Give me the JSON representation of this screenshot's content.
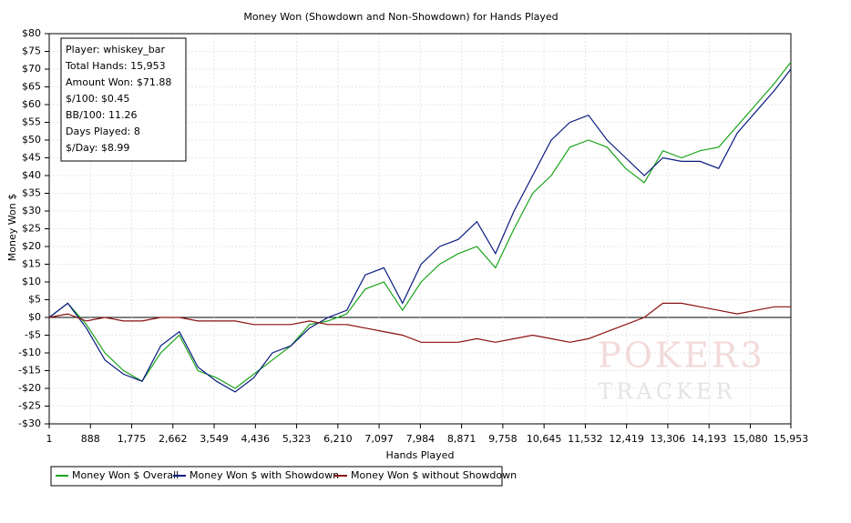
{
  "chart_data": {
    "type": "line",
    "title": "Money Won (Showdown and Non-Showdown) for Hands Played",
    "x_label": "Hands Played",
    "y_label": "Money Won $",
    "info": [
      "Player: whiskey_bar",
      "Total Hands: 15,953",
      "Amount Won: $71.88",
      "$/100: $0.45",
      "BB/100: 11.26",
      "Days Played: 8",
      "$/Day: $8.99"
    ],
    "watermark": [
      "POKER3",
      "TRACKER"
    ],
    "x": [
      1,
      400,
      800,
      1200,
      1600,
      2000,
      2400,
      2800,
      3200,
      3600,
      4000,
      4400,
      4800,
      5200,
      5600,
      6000,
      6400,
      6800,
      7200,
      7600,
      8000,
      8400,
      8800,
      9200,
      9600,
      10000,
      10400,
      10800,
      11200,
      11600,
      12000,
      12400,
      12800,
      13200,
      13600,
      14000,
      14400,
      14800,
      15200,
      15600,
      15953
    ],
    "series": [
      {
        "name": "Money Won $ Overall",
        "color": "#1aa31a",
        "values": [
          0,
          4,
          -2,
          -10,
          -15,
          -18,
          -10,
          -5,
          -15,
          -17,
          -20,
          -16,
          -12,
          -8,
          -2,
          -1,
          1,
          8,
          10,
          2,
          10,
          15,
          18,
          20,
          14,
          25,
          35,
          40,
          48,
          50,
          48,
          42,
          38,
          47,
          45,
          47,
          48,
          54,
          60,
          66,
          72
        ]
      },
      {
        "name": "Money Won $ with Showdown",
        "color": "#0a1a80",
        "values": [
          0,
          4,
          -3,
          -12,
          -16,
          -18,
          -8,
          -4,
          -14,
          -18,
          -21,
          -17,
          -10,
          -8,
          -3,
          0,
          2,
          12,
          14,
          4,
          15,
          20,
          22,
          27,
          18,
          30,
          40,
          50,
          55,
          57,
          50,
          45,
          40,
          45,
          44,
          44,
          42,
          52,
          58,
          64,
          70
        ]
      },
      {
        "name": "Money Won $ without Showdown",
        "color": "#8b1010",
        "values": [
          0,
          1,
          -1,
          0,
          -1,
          -1,
          0,
          0,
          -1,
          -1,
          -1,
          -2,
          -2,
          -2,
          -1,
          -2,
          -2,
          -3,
          -4,
          -5,
          -7,
          -7,
          -7,
          -6,
          -7,
          -6,
          -5,
          -6,
          -7,
          -6,
          -4,
          -2,
          0,
          4,
          4,
          3,
          2,
          1,
          2,
          3,
          3
        ]
      }
    ],
    "xlim": [
      1,
      15953
    ],
    "xticks": [
      1,
      888,
      {
        "value": 1775,
        "label": "1,775"
      },
      {
        "value": 2662,
        "label": "2,662"
      },
      {
        "value": 3549,
        "label": "3,549"
      },
      {
        "value": 4436,
        "label": "4,436"
      },
      {
        "value": 5323,
        "label": "5,323"
      },
      {
        "value": 6210,
        "label": "6,210"
      },
      {
        "value": 7097,
        "label": "7,097"
      },
      {
        "value": 7984,
        "label": "7,984"
      },
      {
        "value": 8871,
        "label": "8,871"
      },
      {
        "value": 9758,
        "label": "9,758"
      },
      {
        "value": 10645,
        "label": "10,645"
      },
      {
        "value": 11532,
        "label": "11,532"
      },
      {
        "value": 12419,
        "label": "12,419"
      },
      {
        "value": 13306,
        "label": "13,306"
      },
      {
        "value": 14193,
        "label": "14,193"
      },
      {
        "value": 15080,
        "label": "15,080"
      },
      {
        "value": 15953,
        "label": "15,953"
      }
    ],
    "ylim": [
      -30,
      80
    ],
    "yticks": [
      {
        "value": -30,
        "label": "-$30"
      },
      {
        "value": -25,
        "label": "-$25"
      },
      {
        "value": -20,
        "label": "-$20"
      },
      {
        "value": -15,
        "label": "-$15"
      },
      {
        "value": -10,
        "label": "-$10"
      },
      {
        "value": -5,
        "label": "-$5"
      },
      {
        "value": 0,
        "label": "$0"
      },
      {
        "value": 5,
        "label": "$5"
      },
      {
        "value": 10,
        "label": "$10"
      },
      {
        "value": 15,
        "label": "$15"
      },
      {
        "value": 20,
        "label": "$20"
      },
      {
        "value": 25,
        "label": "$25"
      },
      {
        "value": 30,
        "label": "$30"
      },
      {
        "value": 35,
        "label": "$35"
      },
      {
        "value": 40,
        "label": "$40"
      },
      {
        "value": 45,
        "label": "$45"
      },
      {
        "value": 50,
        "label": "$50"
      },
      {
        "value": 55,
        "label": "$55"
      },
      {
        "value": 60,
        "label": "$60"
      },
      {
        "value": 65,
        "label": "$65"
      },
      {
        "value": 70,
        "label": "$70"
      },
      {
        "value": 75,
        "label": "$75"
      },
      {
        "value": 80,
        "label": "$80"
      }
    ],
    "grid": true,
    "legend": "bottom-left"
  }
}
